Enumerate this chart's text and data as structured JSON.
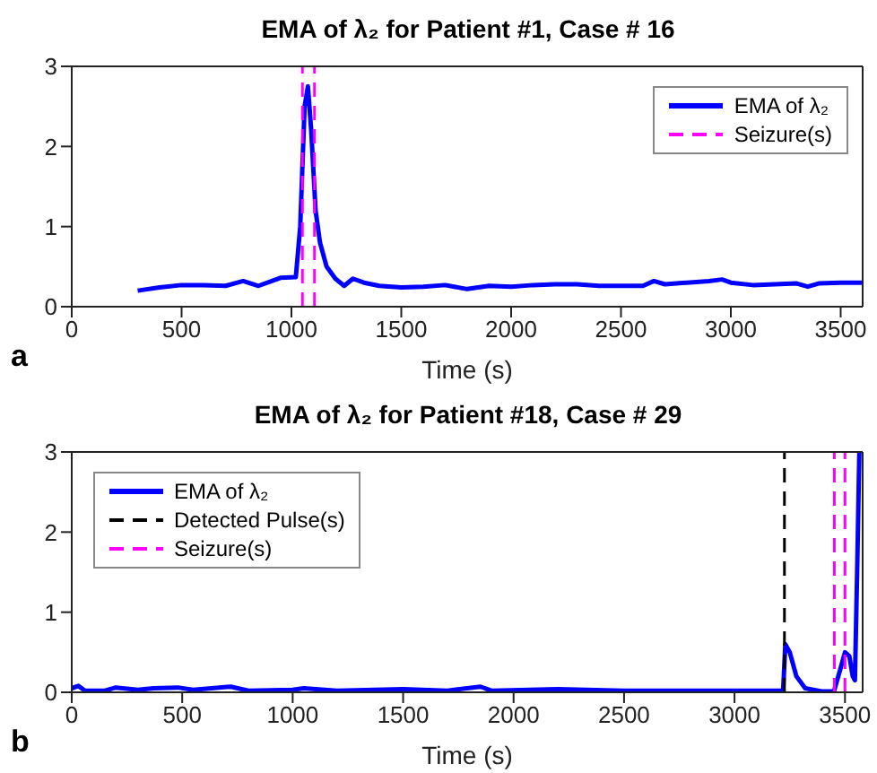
{
  "chart_data": [
    {
      "type": "line",
      "title": "EMA of λ₂ for Patient #1, Case # 16",
      "xlabel": "Time (s)",
      "xlim": [
        0,
        3600
      ],
      "xticks": [
        0,
        500,
        1000,
        1500,
        2000,
        2500,
        3000,
        3500
      ],
      "ylim": [
        0,
        3
      ],
      "yticks": [
        0,
        1,
        2,
        3
      ],
      "legend": "top right",
      "annotations": [
        "a"
      ],
      "series": [
        {
          "name": "EMA of λ₂",
          "color": "#0000ff",
          "x": [
            300,
            400,
            500,
            600,
            700,
            780,
            850,
            950,
            1020,
            1040,
            1060,
            1075,
            1090,
            1110,
            1130,
            1160,
            1200,
            1240,
            1280,
            1330,
            1400,
            1500,
            1600,
            1700,
            1800,
            1900,
            2000,
            2100,
            2200,
            2300,
            2400,
            2500,
            2600,
            2650,
            2700,
            2800,
            2900,
            2960,
            3000,
            3100,
            3200,
            3300,
            3350,
            3400,
            3500,
            3600
          ],
          "values": [
            0.2,
            0.24,
            0.27,
            0.27,
            0.26,
            0.32,
            0.26,
            0.36,
            0.37,
            1.0,
            2.5,
            2.75,
            2.2,
            1.2,
            0.8,
            0.5,
            0.35,
            0.26,
            0.35,
            0.3,
            0.26,
            0.24,
            0.25,
            0.27,
            0.22,
            0.26,
            0.25,
            0.27,
            0.28,
            0.28,
            0.26,
            0.26,
            0.26,
            0.32,
            0.28,
            0.3,
            0.32,
            0.34,
            0.3,
            0.27,
            0.28,
            0.29,
            0.25,
            0.29,
            0.3,
            0.3
          ]
        },
        {
          "name": "Seizure(s)",
          "color": "#ff00ff",
          "line_style": "dashed",
          "x": [
            1050,
            1050
          ],
          "values": [
            0,
            3
          ]
        },
        {
          "color": "#ff00ff",
          "line_style": "dashed",
          "x": [
            1105,
            1105
          ],
          "values": [
            0,
            3
          ]
        }
      ]
    },
    {
      "type": "line",
      "title": "EMA of λ₂ for Patient #18, Case # 29",
      "xlabel": "Time (s)",
      "xlim": [
        0,
        3580
      ],
      "xticks": [
        0,
        500,
        1000,
        1500,
        2000,
        2500,
        3000,
        3500
      ],
      "ylim": [
        0,
        3
      ],
      "yticks": [
        0,
        1,
        2,
        3
      ],
      "legend": "top left",
      "annotations": [
        "b"
      ],
      "series": [
        {
          "name": "EMA of λ₂",
          "color": "#0000ff",
          "x": [
            0,
            30,
            60,
            150,
            200,
            300,
            370,
            480,
            550,
            720,
            800,
            1000,
            1050,
            1200,
            1500,
            1700,
            1850,
            1900,
            2200,
            2500,
            3000,
            3220,
            3230,
            3250,
            3280,
            3320,
            3400,
            3450,
            3480,
            3500,
            3520,
            3535,
            3545,
            3555,
            3565
          ],
          "values": [
            0.05,
            0.08,
            0.02,
            0.02,
            0.06,
            0.03,
            0.05,
            0.06,
            0.03,
            0.07,
            0.02,
            0.03,
            0.05,
            0.02,
            0.04,
            0.02,
            0.07,
            0.02,
            0.04,
            0.02,
            0.02,
            0.02,
            0.6,
            0.5,
            0.2,
            0.05,
            0.01,
            0.01,
            0.3,
            0.5,
            0.45,
            0.2,
            0.15,
            1.5,
            3
          ]
        },
        {
          "name": "Detected Pulse(s)",
          "color": "#000000",
          "line_style": "dashed",
          "x": [
            3226,
            3226
          ],
          "values": [
            0,
            3
          ]
        },
        {
          "name": "Seizure(s)",
          "color": "#ff00ff",
          "line_style": "dashed",
          "x": [
            3452,
            3452
          ],
          "values": [
            0,
            3
          ]
        },
        {
          "color": "#ff00ff",
          "line_style": "dashed",
          "x": [
            3500,
            3500
          ],
          "values": [
            0,
            3
          ]
        }
      ]
    }
  ]
}
